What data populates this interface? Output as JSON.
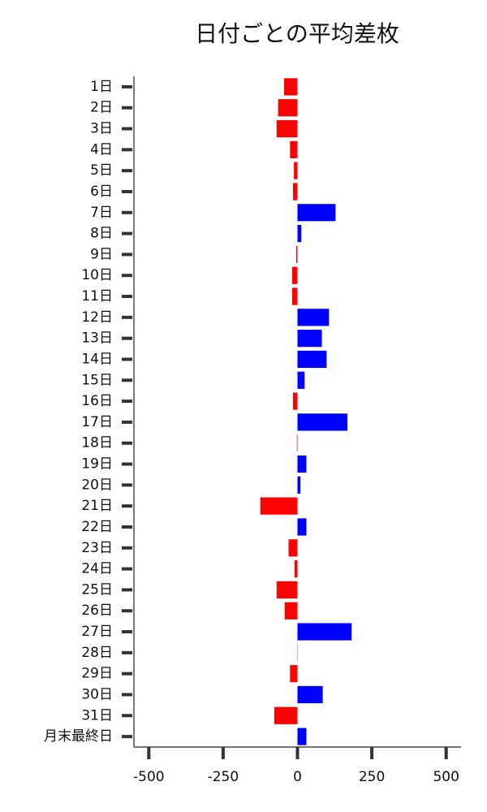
{
  "chart_data": {
    "type": "barh",
    "title": "日付ごとの平均差枚",
    "categories": [
      "1日",
      "2日",
      "3日",
      "4日",
      "5日",
      "6日",
      "7日",
      "8日",
      "9日",
      "10日",
      "11日",
      "12日",
      "13日",
      "14日",
      "15日",
      "16日",
      "17日",
      "18日",
      "19日",
      "20日",
      "21日",
      "22日",
      "23日",
      "24日",
      "25日",
      "26日",
      "27日",
      "28日",
      "29日",
      "30日",
      "31日",
      "月末最終日"
    ],
    "values": [
      -45,
      -65,
      -70,
      -25,
      -12,
      -15,
      128,
      13,
      -4,
      -18,
      -18,
      106,
      82,
      98,
      24,
      -15,
      168,
      -2,
      30,
      10,
      -125,
      30,
      -30,
      -10,
      -70,
      -43,
      182,
      -1,
      -25,
      85,
      -78,
      30
    ],
    "positive_color": "#0000ff",
    "negative_color": "#ff0000",
    "xlim": [
      -550,
      550
    ],
    "xticks": [
      -500,
      -250,
      0,
      250,
      500
    ]
  }
}
